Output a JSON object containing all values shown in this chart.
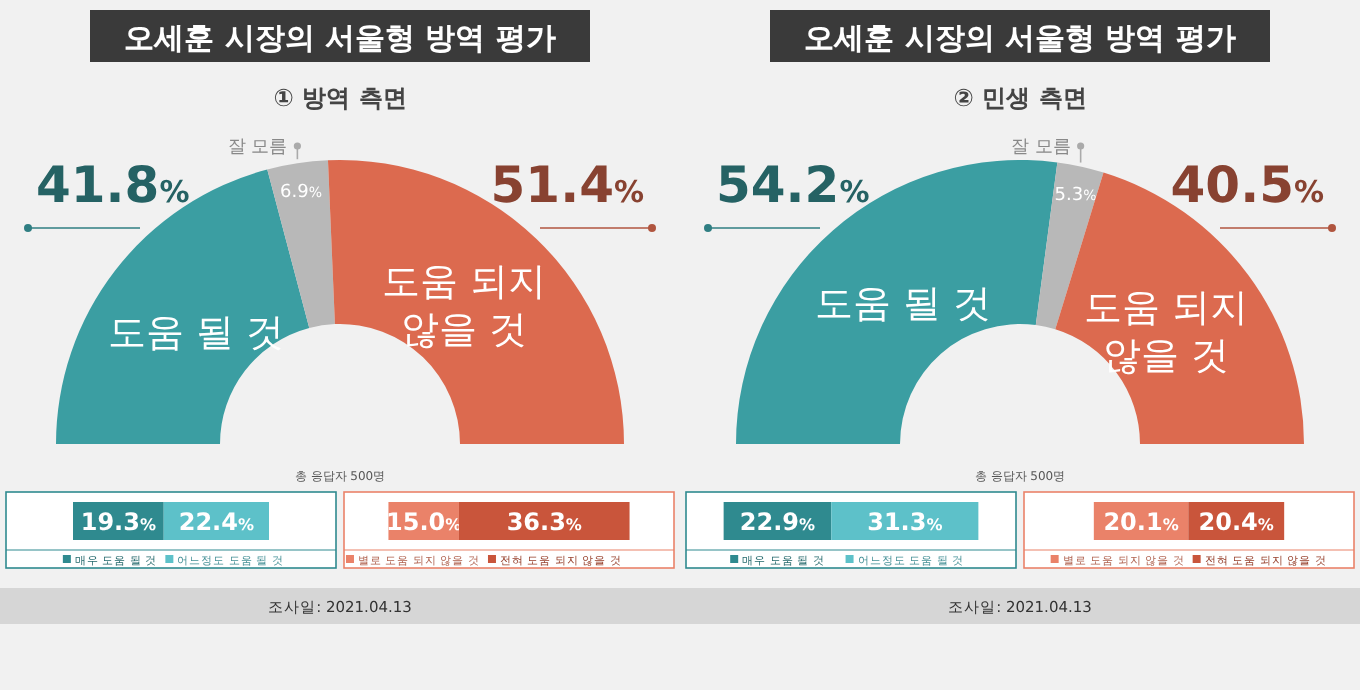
{
  "chart_data": [
    {
      "type": "donut",
      "title": "오세훈 시장의 서울형 방역 평가",
      "subtitle": "① 방역 측면",
      "categories": [
        "도움 될 것",
        "잘 모름",
        "도움 되지 않을 것"
      ],
      "values": [
        41.8,
        6.9,
        51.4
      ],
      "colors": [
        "#3b9ea2",
        "#b8b8b8",
        "#dc6a4f"
      ],
      "value_labels": [
        "41.8%",
        "6.9%",
        "51.4%"
      ],
      "annotations": [
        "총 응답자 500명",
        "조사일: 2021.04.13"
      ]
    },
    {
      "type": "bar",
      "orientation": "horizontal",
      "stacked": true,
      "categories": [
        null
      ],
      "legend": "bottom",
      "series": [
        {
          "name": "매우 도움 될 것",
          "color": "#2f8a8f",
          "values": [
            19.3
          ],
          "value_labels": [
            "19.3%"
          ]
        },
        {
          "name": "어느정도 도움 될 것",
          "color": "#5dc1c9",
          "values": [
            22.4
          ],
          "value_labels": [
            "22.4%"
          ]
        }
      ]
    },
    {
      "type": "bar",
      "orientation": "horizontal",
      "stacked": true,
      "categories": [
        null
      ],
      "legend": "bottom",
      "series": [
        {
          "name": "별로 도움 되지 않을 것",
          "color": "#ea8269",
          "values": [
            15.0
          ],
          "value_labels": [
            "15.0%"
          ]
        },
        {
          "name": "전혀 도움 되지 않을 것",
          "color": "#c9553b",
          "values": [
            36.3
          ],
          "value_labels": [
            "36.3%"
          ]
        }
      ]
    },
    {
      "type": "donut",
      "title": "오세훈 시장의 서울형 방역 평가",
      "subtitle": "② 민생 측면",
      "categories": [
        "도움 될 것",
        "잘 모름",
        "도움 되지 않을 것"
      ],
      "values": [
        54.2,
        5.3,
        40.5
      ],
      "colors": [
        "#3b9ea2",
        "#b8b8b8",
        "#dc6a4f"
      ],
      "value_labels": [
        "54.2%",
        "5.3%",
        "40.5%"
      ],
      "annotations": [
        "총 응답자 500명",
        "조사일: 2021.04.13"
      ]
    },
    {
      "type": "bar",
      "orientation": "horizontal",
      "stacked": true,
      "categories": [
        null
      ],
      "legend": "bottom",
      "series": [
        {
          "name": "매우 도움 될 것",
          "color": "#2f8a8f",
          "values": [
            22.9
          ],
          "value_labels": [
            "22.9%"
          ]
        },
        {
          "name": "어느정도 도움 될 것",
          "color": "#5dc1c9",
          "values": [
            31.3
          ],
          "value_labels": [
            "31.3%"
          ]
        }
      ]
    },
    {
      "type": "bar",
      "orientation": "horizontal",
      "stacked": true,
      "categories": [
        null
      ],
      "legend": "bottom",
      "series": [
        {
          "name": "별로 도움 되지 않을 것",
          "color": "#ea8269",
          "values": [
            20.1
          ],
          "value_labels": [
            "20.1%"
          ]
        },
        {
          "name": "전혀 도움 되지 않을 것",
          "color": "#c9553b",
          "values": [
            20.4
          ],
          "value_labels": [
            "20.4%"
          ]
        }
      ]
    }
  ]
}
